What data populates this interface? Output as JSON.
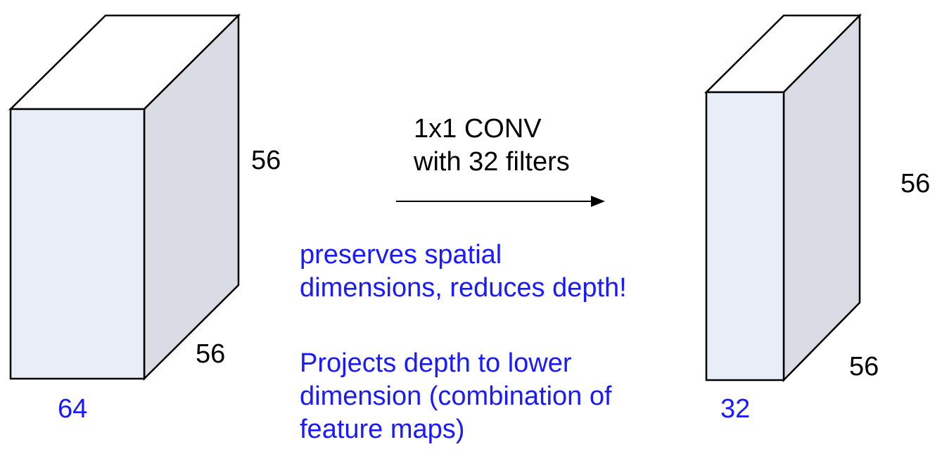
{
  "colors": {
    "face_front": "#e8edf8",
    "face_top": "#ffffff",
    "face_side": "#d9dce4",
    "outline": "#000000",
    "blue_text": "#1a1aff"
  },
  "input_volume": {
    "height_label": "56",
    "width_label": "56",
    "depth_label": "64"
  },
  "output_volume": {
    "height_label": "56",
    "width_label": "56",
    "depth_label": "32"
  },
  "operation": {
    "line1": "1x1 CONV",
    "line2": "with 32 filters"
  },
  "notes": {
    "note1": [
      "preserves spatial",
      "dimensions, reduces depth!"
    ],
    "note2": [
      "Projects depth to lower",
      "dimension (combination of",
      "feature maps)"
    ]
  }
}
